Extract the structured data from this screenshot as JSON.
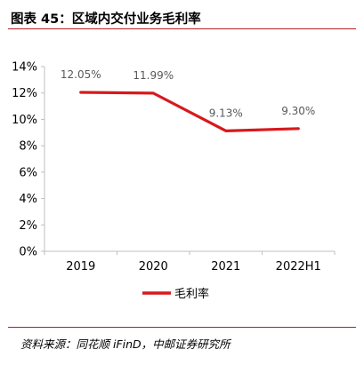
{
  "figure": {
    "title": "图表 45：区域内交付业务毛利率",
    "source": "资料来源：同花顺 iFinD，中邮证券研究所"
  },
  "chart_data": {
    "type": "line",
    "title": "",
    "xlabel": "",
    "ylabel": "",
    "categories": [
      "2019",
      "2020",
      "2021",
      "2022H1"
    ],
    "series": [
      {
        "name": "毛利率",
        "values": [
          12.05,
          11.99,
          9.13,
          9.3
        ],
        "labels": [
          "12.05%",
          "11.99%",
          "9.13%",
          "9.30%"
        ],
        "color": "#d7191c"
      }
    ],
    "ylim": [
      0,
      14
    ],
    "yticks": [
      0,
      2,
      4,
      6,
      8,
      10,
      12,
      14
    ],
    "ytick_labels": [
      "0%",
      "2%",
      "4%",
      "6%",
      "8%",
      "10%",
      "12%",
      "14%"
    ],
    "grid": false,
    "legend": "bottom-center"
  },
  "colors": {
    "accent": "#b01e23",
    "series": "#d7191c",
    "axis": "#bfbfbf"
  }
}
